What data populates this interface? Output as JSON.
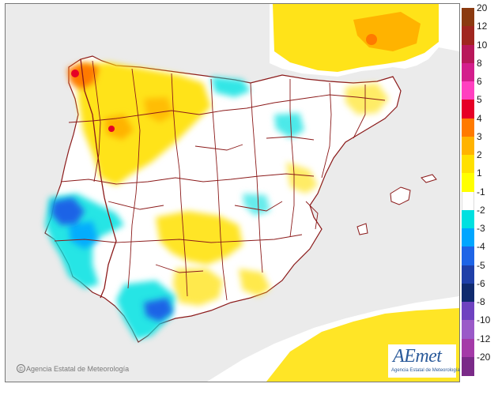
{
  "map": {
    "credit": "Agencia Estatal de Meteorología",
    "copyright_symbol": "©",
    "logo": {
      "wordmark": "AEmet",
      "tagline": "Agencia Estatal de Meteorología"
    },
    "legend": [
      {
        "label": "20",
        "color": "#8b3a10"
      },
      {
        "label": "12",
        "color": "#a0261f"
      },
      {
        "label": "10",
        "color": "#b8185a"
      },
      {
        "label": "8",
        "color": "#d31e8c"
      },
      {
        "label": "6",
        "color": "#ff40c0"
      },
      {
        "label": "5",
        "color": "#e60026"
      },
      {
        "label": "4",
        "color": "#ff7a00"
      },
      {
        "label": "3",
        "color": "#ffb300"
      },
      {
        "label": "2",
        "color": "#ffe000"
      },
      {
        "label": "1",
        "color": "#ffff00"
      },
      {
        "label": "-1",
        "color": "#ffffff"
      },
      {
        "label": "-2",
        "color": "#00e0e0"
      },
      {
        "label": "-3",
        "color": "#00a6ff"
      },
      {
        "label": "-4",
        "color": "#1e64e6"
      },
      {
        "label": "-5",
        "color": "#1f3fa8"
      },
      {
        "label": "-6",
        "color": "#102a6e"
      },
      {
        "label": "-8",
        "color": "#6e42c0"
      },
      {
        "label": "-10",
        "color": "#9a5ac8"
      },
      {
        "label": "-12",
        "color": "#a43aa8"
      },
      {
        "label": "-20",
        "color": "#7a2a88"
      }
    ],
    "colors": {
      "background": "#ebebeb",
      "land": "#ffffff",
      "boundaries": "#8b1a1a"
    }
  }
}
